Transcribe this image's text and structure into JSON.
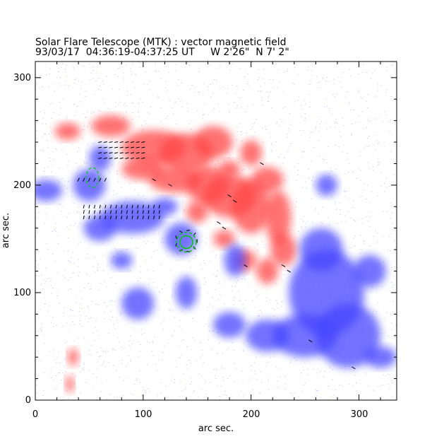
{
  "chart_data": {
    "type": "heatmap",
    "title": "Solar Flare Telescope (MTK) : vector magnetic field",
    "subtitle": "93/03/17  04:36:19-04:37:25 UT     W 2'26\"  N 7' 2\"",
    "xlabel": "arc sec.",
    "ylabel": "arc sec.",
    "xlim": [
      0,
      335
    ],
    "ylim": [
      0,
      315
    ],
    "xticks": [
      "0",
      "100",
      "200",
      "300"
    ],
    "yticks": [
      "0",
      "100",
      "200",
      "300"
    ],
    "colors": {
      "positive": "#ff4444",
      "negative": "#4444ff",
      "vectors": "#000000",
      "contour": "#00cc00"
    },
    "legend": "none"
  }
}
